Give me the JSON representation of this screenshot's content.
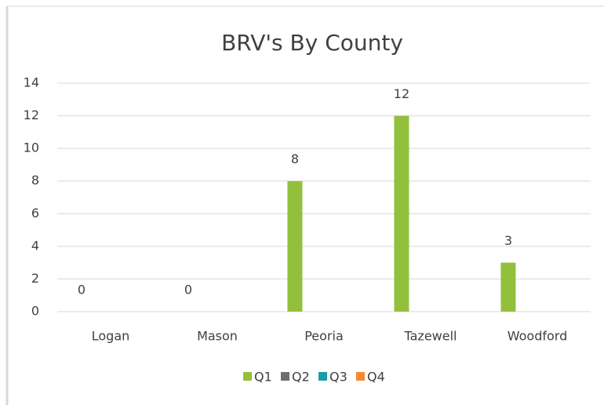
{
  "chart_data": {
    "type": "bar",
    "title": "BRV's By County",
    "categories": [
      "Logan",
      "Mason",
      "Peoria",
      "Tazewell",
      "Woodford"
    ],
    "series": [
      {
        "name": "Q1",
        "color": "#92c03c",
        "values": [
          0,
          0,
          8,
          12,
          3
        ]
      },
      {
        "name": "Q2",
        "color": "#6e6e6e",
        "values": [
          null,
          null,
          null,
          null,
          null
        ]
      },
      {
        "name": "Q3",
        "color": "#1a9bab",
        "values": [
          null,
          null,
          null,
          null,
          null
        ]
      },
      {
        "name": "Q4",
        "color": "#f58a30",
        "values": [
          null,
          null,
          null,
          null,
          null
        ]
      }
    ],
    "ylim": [
      0,
      14
    ],
    "yticks": [
      0,
      2,
      4,
      6,
      8,
      10,
      12,
      14
    ],
    "grid": true,
    "legend": "bottom",
    "data_labels": true
  }
}
